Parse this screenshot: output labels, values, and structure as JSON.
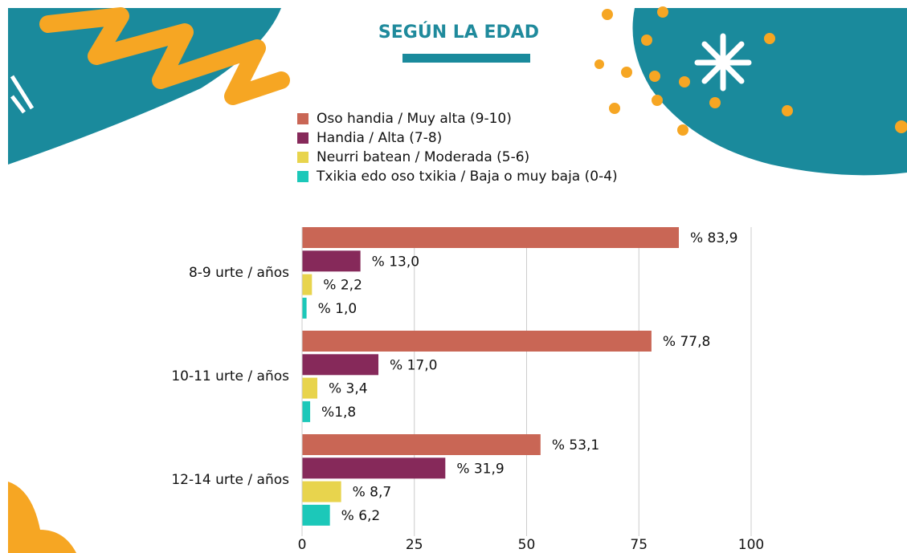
{
  "chart_data": {
    "type": "bar",
    "orientation": "horizontal",
    "title": "SEGÚN LA EDAD",
    "categories": [
      "8-9 urte / años",
      "10-11 urte / años",
      "12-14 urte / años"
    ],
    "series": [
      {
        "name": "Oso handia / Muy alta (9-10)",
        "color": "#c96655",
        "values": [
          83.9,
          77.8,
          53.1
        ],
        "value_labels": [
          "% 83,9",
          "% 77,8",
          "% 53,1"
        ]
      },
      {
        "name": "Handia / Alta (7-8)",
        "color": "#86295a",
        "values": [
          13.0,
          17.0,
          31.9
        ],
        "value_labels": [
          "% 13,0",
          "% 17,0",
          "% 31,9"
        ]
      },
      {
        "name": "Neurri batean / Moderada (5-6)",
        "color": "#e8d44d",
        "values": [
          2.2,
          3.4,
          8.7
        ],
        "value_labels": [
          "% 2,2",
          "% 3,4",
          "% 8,7"
        ]
      },
      {
        "name": "Txikia edo oso txikia / Baja o muy baja (0-4)",
        "color": "#1cc8b9",
        "values": [
          1.0,
          1.8,
          6.2
        ],
        "value_labels": [
          "% 1,0",
          "%1,8",
          "% 6,2"
        ]
      }
    ],
    "xlim": [
      0,
      100
    ],
    "xticks": [
      0,
      25,
      50,
      75,
      100
    ],
    "grid": true
  }
}
